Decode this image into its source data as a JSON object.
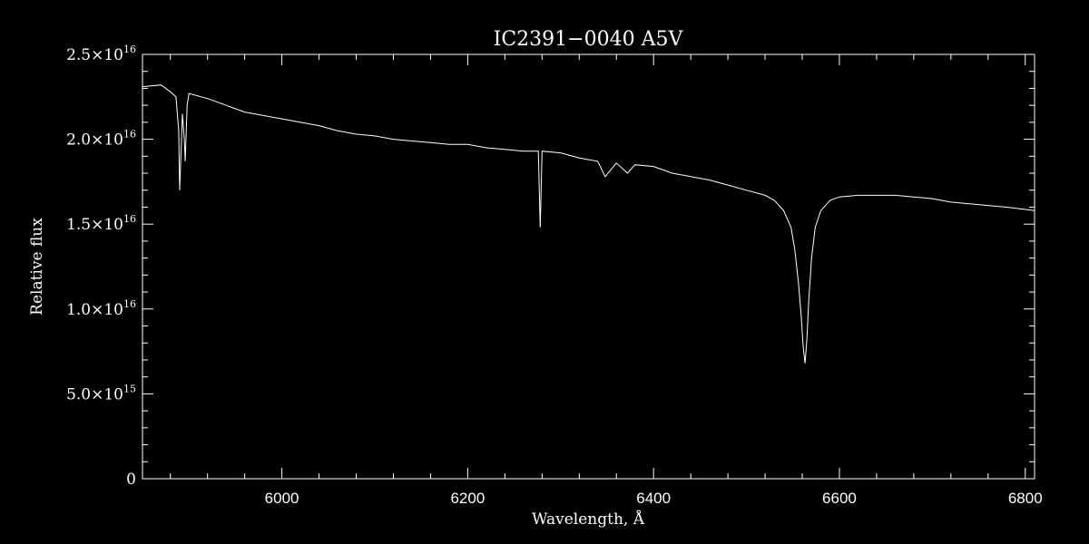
{
  "chart_data": {
    "type": "line",
    "title": "IC2391−0040   A5V",
    "xlabel": "Wavelength, Å",
    "ylabel": "Relative flux",
    "xlim": [
      5850,
      6810
    ],
    "ylim": [
      0,
      2.5e+16
    ],
    "x_ticks": [
      6000,
      6200,
      6400,
      6600,
      6800
    ],
    "x_tick_labels": [
      "6000",
      "6200",
      "6400",
      "6600",
      "6800"
    ],
    "y_ticks": [
      0,
      5000000000000000.0,
      1e+16,
      1.5e+16,
      2e+16,
      2.5e+16
    ],
    "y_tick_labels": [
      {
        "mant": "0",
        "exp": ""
      },
      {
        "mant": "5.0×10",
        "exp": "15"
      },
      {
        "mant": "1.0×10",
        "exp": "16"
      },
      {
        "mant": "1.5×10",
        "exp": "16"
      },
      {
        "mant": "2.0×10",
        "exp": "16"
      },
      {
        "mant": "2.5×10",
        "exp": "16"
      }
    ],
    "grid": false,
    "colors": {
      "background": "#000000",
      "foreground": "#ffffff"
    },
    "series": [
      {
        "x": [
          5850,
          5870,
          5880,
          5886,
          5889,
          5890,
          5893,
          5895,
          5896,
          5898,
          5900,
          5920,
          5940,
          5960,
          5980,
          6000,
          6020,
          6040,
          6060,
          6080,
          6100,
          6120,
          6140,
          6160,
          6180,
          6200,
          6220,
          6240,
          6260,
          6276,
          6278,
          6280,
          6300,
          6320,
          6340,
          6348,
          6360,
          6372,
          6380,
          6400,
          6420,
          6440,
          6460,
          6480,
          6500,
          6520,
          6530,
          6540,
          6548,
          6552,
          6556,
          6559,
          6561,
          6563,
          6565,
          6567,
          6570,
          6574,
          6580,
          6590,
          6600,
          6620,
          6640,
          6660,
          6680,
          6700,
          6720,
          6740,
          6760,
          6780,
          6810
        ],
        "y": [
          2.31e+16,
          2.32e+16,
          2.28e+16,
          2.25e+16,
          2.05e+16,
          1.7e+16,
          2.15e+16,
          2e+16,
          1.87e+16,
          2.2e+16,
          2.27e+16,
          2.24e+16,
          2.2e+16,
          2.16e+16,
          2.14e+16,
          2.12e+16,
          2.1e+16,
          2.08e+16,
          2.05e+16,
          2.03e+16,
          2.02e+16,
          2e+16,
          1.99e+16,
          1.98e+16,
          1.97e+16,
          1.97e+16,
          1.95e+16,
          1.94e+16,
          1.93e+16,
          1.93e+16,
          1.48e+16,
          1.93e+16,
          1.92e+16,
          1.89e+16,
          1.87e+16,
          1.78e+16,
          1.86e+16,
          1.8e+16,
          1.85e+16,
          1.84e+16,
          1.8e+16,
          1.78e+16,
          1.76e+16,
          1.73e+16,
          1.7e+16,
          1.67e+16,
          1.64e+16,
          1.58e+16,
          1.48e+16,
          1.35e+16,
          1.15e+16,
          9500000000000000.0,
          7800000000000000.0,
          6800000000000000.0,
          8200000000000000.0,
          1.05e+16,
          1.3e+16,
          1.48e+16,
          1.58e+16,
          1.64e+16,
          1.66e+16,
          1.67e+16,
          1.67e+16,
          1.67e+16,
          1.66e+16,
          1.65e+16,
          1.63e+16,
          1.62e+16,
          1.61e+16,
          1.6e+16,
          1.58e+16
        ]
      }
    ]
  }
}
